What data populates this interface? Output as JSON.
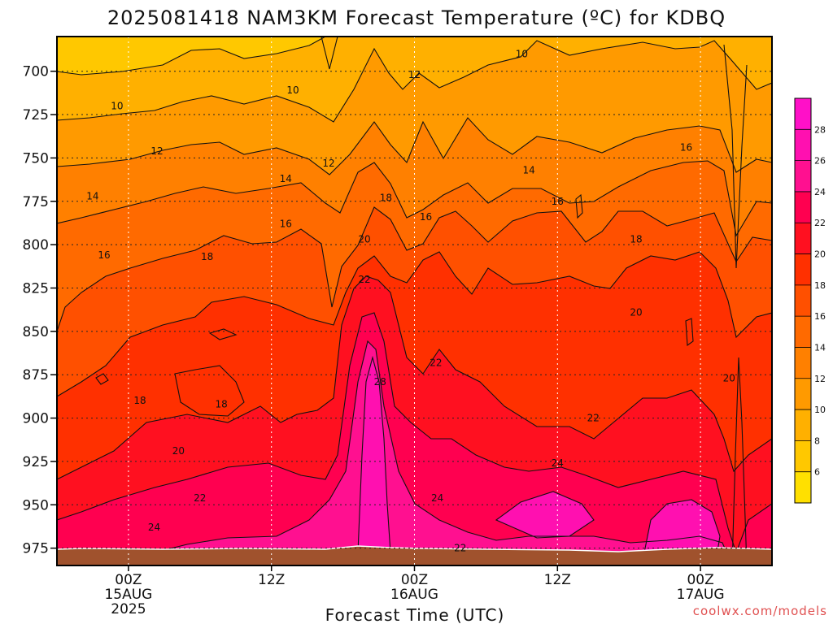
{
  "chart_data": {
    "type": "heatmap",
    "title": "2025081418 NAM3KM Forecast Temperature (ºC) for KDBQ",
    "xlabel": "Forecast Time (UTC)",
    "ylabel": "",
    "credit": "coolwx.com/models",
    "x_range_hours": [
      -5,
      45
    ],
    "x_ticks": [
      {
        "hour": 0,
        "lines": [
          "00Z",
          "15AUG",
          "2025"
        ]
      },
      {
        "hour": 10,
        "lines": [
          "12Z"
        ]
      },
      {
        "hour": 20,
        "lines": [
          "00Z",
          "16AUG"
        ]
      },
      {
        "hour": 30,
        "lines": [
          "12Z"
        ]
      },
      {
        "hour": 40,
        "lines": [
          "00Z",
          "17AUG"
        ]
      }
    ],
    "y_range_hpa": [
      680,
      985
    ],
    "y_ticks": [
      700,
      725,
      750,
      775,
      800,
      825,
      850,
      875,
      900,
      925,
      950,
      975
    ],
    "grid": true,
    "colorbar": {
      "ticks": [
        6,
        8,
        10,
        12,
        14,
        16,
        18,
        20,
        22,
        24,
        26,
        28
      ],
      "colors": [
        "#ffe000",
        "#ffc800",
        "#ffb000",
        "#ff9a00",
        "#ff8000",
        "#ff6a00",
        "#ff5000",
        "#ff3000",
        "#ff1020",
        "#ff0050",
        "#ff1090",
        "#ff10b0",
        "#ff10c8"
      ]
    },
    "surface_color": "#a0522d",
    "contour_labels": [
      {
        "text": "10",
        "hour": -0.8,
        "hpa": 720
      },
      {
        "text": "10",
        "hour": 11.5,
        "hpa": 711
      },
      {
        "text": "10",
        "hour": 27.5,
        "hpa": 690
      },
      {
        "text": "12",
        "hour": 20,
        "hpa": 702
      },
      {
        "text": "12",
        "hour": 2,
        "hpa": 746
      },
      {
        "text": "12",
        "hour": 14,
        "hpa": 753
      },
      {
        "text": "14",
        "hour": -2.5,
        "hpa": 772
      },
      {
        "text": "14",
        "hour": 11,
        "hpa": 762
      },
      {
        "text": "14",
        "hour": 28,
        "hpa": 757
      },
      {
        "text": "16",
        "hour": -1.7,
        "hpa": 806
      },
      {
        "text": "16",
        "hour": 11,
        "hpa": 788
      },
      {
        "text": "16",
        "hour": 20.8,
        "hpa": 784
      },
      {
        "text": "16",
        "hour": 30,
        "hpa": 775
      },
      {
        "text": "16",
        "hour": 39,
        "hpa": 744
      },
      {
        "text": "18",
        "hour": 5.5,
        "hpa": 807
      },
      {
        "text": "18",
        "hour": 18,
        "hpa": 773
      },
      {
        "text": "18",
        "hour": 35.5,
        "hpa": 797
      },
      {
        "text": "18",
        "hour": 0.8,
        "hpa": 890
      },
      {
        "text": "18",
        "hour": 6.5,
        "hpa": 892
      },
      {
        "text": "20",
        "hour": 16.5,
        "hpa": 797
      },
      {
        "text": "20",
        "hour": 35.5,
        "hpa": 839
      },
      {
        "text": "20",
        "hour": 42,
        "hpa": 877
      },
      {
        "text": "20",
        "hour": 3.5,
        "hpa": 919
      },
      {
        "text": "22",
        "hour": 16.5,
        "hpa": 820
      },
      {
        "text": "22",
        "hour": 21.5,
        "hpa": 868
      },
      {
        "text": "22",
        "hour": 32.5,
        "hpa": 900
      },
      {
        "text": "22",
        "hour": 5,
        "hpa": 946
      },
      {
        "text": "22",
        "hour": 23.2,
        "hpa": 975
      },
      {
        "text": "24",
        "hour": 30,
        "hpa": 926
      },
      {
        "text": "24",
        "hour": 21.6,
        "hpa": 946
      },
      {
        "text": "24",
        "hour": 1.8,
        "hpa": 963
      },
      {
        "text": "28",
        "hour": 17.6,
        "hpa": 879
      }
    ]
  }
}
